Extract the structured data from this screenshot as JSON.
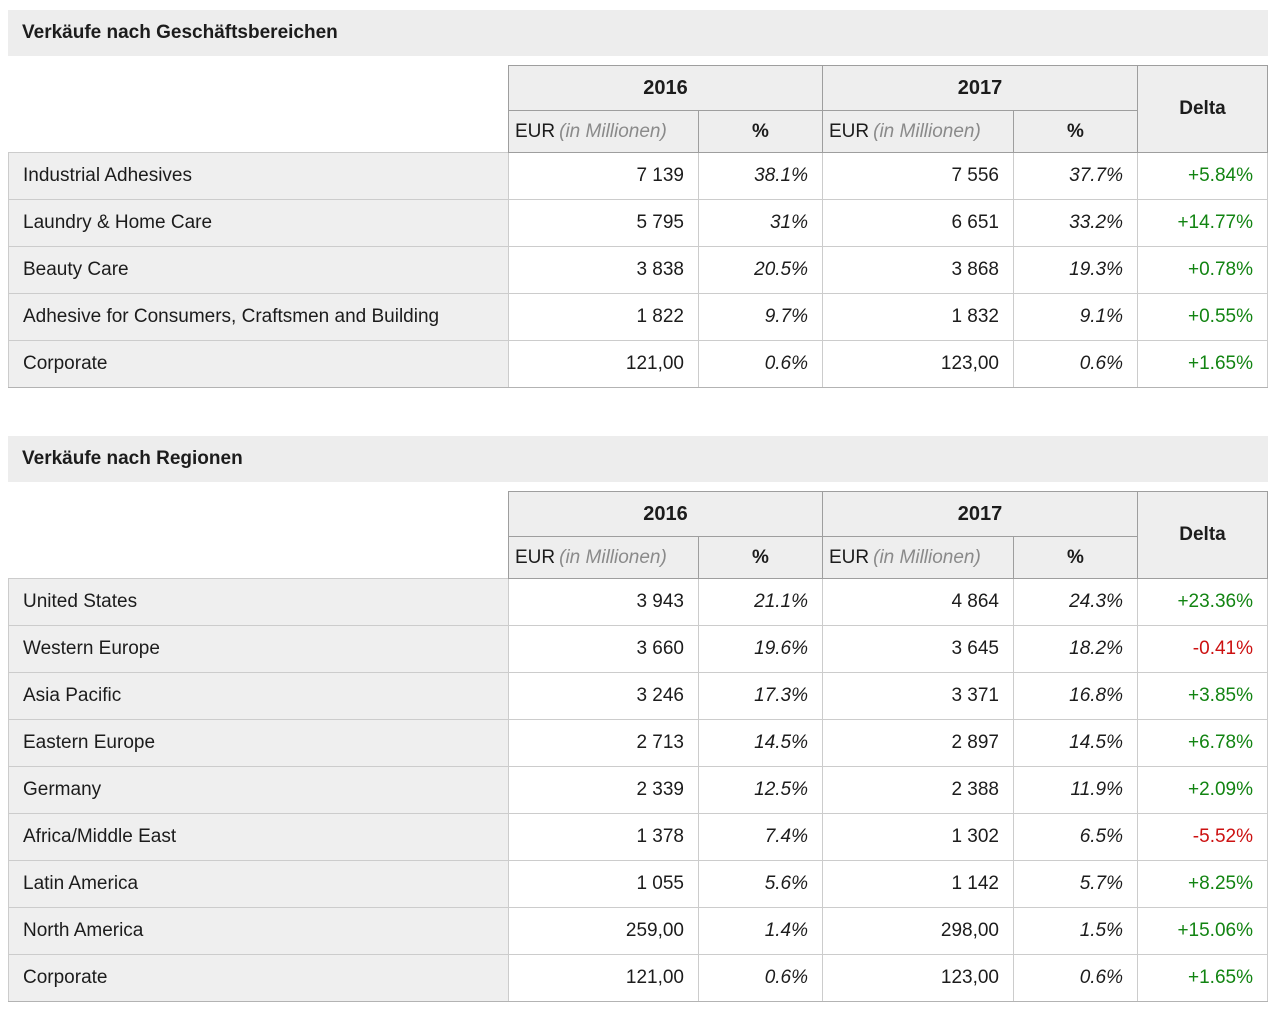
{
  "colors": {
    "positive": "#128412",
    "negative": "#cc1111",
    "title_bar_bg": "#ededed",
    "header_bg": "#eeeeee",
    "label_bg": "#efefef",
    "header_border": "#9e9e9e",
    "cell_border": "#cccccc"
  },
  "tables": [
    {
      "title": "Verkäufe nach Geschäftsbereichen",
      "columns": {
        "year_2016": "2016",
        "year_2017": "2017",
        "delta": "Delta",
        "eur": "EUR",
        "eur_unit": "(in Millionen)",
        "percent": "%"
      },
      "rows": [
        {
          "label": "Industrial Adhesives",
          "y2016": {
            "eur": "7 139",
            "pct": "38.1%"
          },
          "y2017": {
            "eur": "7 556",
            "pct": "37.7%"
          },
          "delta": {
            "value": "+5.84%",
            "trend": "up"
          }
        },
        {
          "label": "Laundry & Home Care",
          "y2016": {
            "eur": "5 795",
            "pct": "31%"
          },
          "y2017": {
            "eur": "6 651",
            "pct": "33.2%"
          },
          "delta": {
            "value": "+14.77%",
            "trend": "up"
          }
        },
        {
          "label": "Beauty Care",
          "y2016": {
            "eur": "3 838",
            "pct": "20.5%"
          },
          "y2017": {
            "eur": "3 868",
            "pct": "19.3%"
          },
          "delta": {
            "value": "+0.78%",
            "trend": "up"
          }
        },
        {
          "label": "Adhesive for Consumers, Craftsmen and Building",
          "y2016": {
            "eur": "1 822",
            "pct": "9.7%"
          },
          "y2017": {
            "eur": "1 832",
            "pct": "9.1%"
          },
          "delta": {
            "value": "+0.55%",
            "trend": "up"
          }
        },
        {
          "label": "Corporate",
          "y2016": {
            "eur": "121,00",
            "pct": "0.6%"
          },
          "y2017": {
            "eur": "123,00",
            "pct": "0.6%"
          },
          "delta": {
            "value": "+1.65%",
            "trend": "up"
          }
        }
      ]
    },
    {
      "title": "Verkäufe nach Regionen",
      "columns": {
        "year_2016": "2016",
        "year_2017": "2017",
        "delta": "Delta",
        "eur": "EUR",
        "eur_unit": "(in Millionen)",
        "percent": "%"
      },
      "rows": [
        {
          "label": "United States",
          "y2016": {
            "eur": "3 943",
            "pct": "21.1%"
          },
          "y2017": {
            "eur": "4 864",
            "pct": "24.3%"
          },
          "delta": {
            "value": "+23.36%",
            "trend": "up"
          }
        },
        {
          "label": "Western Europe",
          "y2016": {
            "eur": "3 660",
            "pct": "19.6%"
          },
          "y2017": {
            "eur": "3 645",
            "pct": "18.2%"
          },
          "delta": {
            "value": "-0.41%",
            "trend": "down"
          }
        },
        {
          "label": "Asia Pacific",
          "y2016": {
            "eur": "3 246",
            "pct": "17.3%"
          },
          "y2017": {
            "eur": "3 371",
            "pct": "16.8%"
          },
          "delta": {
            "value": "+3.85%",
            "trend": "up"
          }
        },
        {
          "label": "Eastern Europe",
          "y2016": {
            "eur": "2 713",
            "pct": "14.5%"
          },
          "y2017": {
            "eur": "2 897",
            "pct": "14.5%"
          },
          "delta": {
            "value": "+6.78%",
            "trend": "up"
          }
        },
        {
          "label": "Germany",
          "y2016": {
            "eur": "2 339",
            "pct": "12.5%"
          },
          "y2017": {
            "eur": "2 388",
            "pct": "11.9%"
          },
          "delta": {
            "value": "+2.09%",
            "trend": "up"
          }
        },
        {
          "label": "Africa/Middle East",
          "y2016": {
            "eur": "1 378",
            "pct": "7.4%"
          },
          "y2017": {
            "eur": "1 302",
            "pct": "6.5%"
          },
          "delta": {
            "value": "-5.52%",
            "trend": "down"
          }
        },
        {
          "label": "Latin America",
          "y2016": {
            "eur": "1 055",
            "pct": "5.6%"
          },
          "y2017": {
            "eur": "1 142",
            "pct": "5.7%"
          },
          "delta": {
            "value": "+8.25%",
            "trend": "up"
          }
        },
        {
          "label": "North America",
          "y2016": {
            "eur": "259,00",
            "pct": "1.4%"
          },
          "y2017": {
            "eur": "298,00",
            "pct": "1.5%"
          },
          "delta": {
            "value": "+15.06%",
            "trend": "up"
          }
        },
        {
          "label": "Corporate",
          "y2016": {
            "eur": "121,00",
            "pct": "0.6%"
          },
          "y2017": {
            "eur": "123,00",
            "pct": "0.6%"
          },
          "delta": {
            "value": "+1.65%",
            "trend": "up"
          }
        }
      ]
    }
  ]
}
